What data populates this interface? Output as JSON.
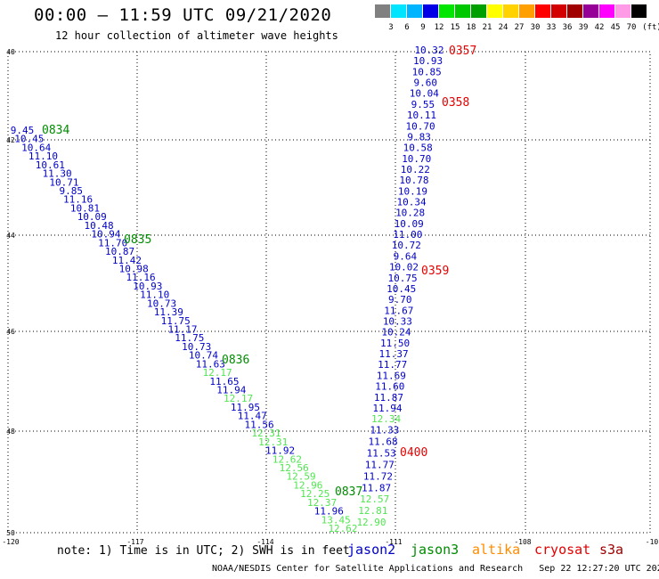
{
  "title": "00:00 — 11:59 UTC 09/21/2020",
  "subtitle": "12 hour collection of altimeter wave heights",
  "legend": {
    "colors": [
      "#808080",
      "#00e5ff",
      "#00b4ff",
      "#0000e6",
      "#00e600",
      "#00c800",
      "#00a000",
      "#ffff00",
      "#ffd200",
      "#ffa000",
      "#ff0000",
      "#d20000",
      "#a00000",
      "#960096",
      "#ff00ff",
      "#ff9be6",
      "#000000"
    ],
    "labels": [
      "3",
      "6",
      "9",
      "12",
      "15",
      "18",
      "21",
      "24",
      "27",
      "30",
      "33",
      "36",
      "39",
      "42",
      "45",
      "70"
    ],
    "unit": "(ft)"
  },
  "axes": {
    "lon_ticks": [
      "-120",
      "-117",
      "-114",
      "-111",
      "-108",
      "-10"
    ],
    "lat_ticks": [
      "40",
      "42",
      "44",
      "46",
      "48",
      "50"
    ]
  },
  "note": "note: 1) Time is in UTC; 2) SWH is in feet",
  "satellites": [
    {
      "name": "jason2",
      "color": "#0000c8"
    },
    {
      "name": "jason3",
      "color": "#008c00"
    },
    {
      "name": "altika",
      "color": "#ff8c00"
    },
    {
      "name": "cryosat",
      "color": "#e60000"
    },
    {
      "name": "s3a",
      "color": "#a00000"
    }
  ],
  "credit": "NOAA/NESDIS Center for Satellite Applications and Research   Sep 22 12:27:20 UTC 2020",
  "track_west": [
    {
      "v": "9.45",
      "c": "#0000c8"
    },
    {
      "v": "10.45",
      "c": "#0000c8"
    },
    {
      "v": "10.64",
      "c": "#0000c8"
    },
    {
      "v": "11.10",
      "c": "#0000c8"
    },
    {
      "v": "10.61",
      "c": "#0000c8"
    },
    {
      "v": "11.30",
      "c": "#0000c8"
    },
    {
      "v": "10.71",
      "c": "#0000c8"
    },
    {
      "v": "9.85",
      "c": "#0000c8"
    },
    {
      "v": "11.16",
      "c": "#0000c8"
    },
    {
      "v": "10.81",
      "c": "#0000c8"
    },
    {
      "v": "10.09",
      "c": "#0000c8"
    },
    {
      "v": "10.48",
      "c": "#0000c8"
    },
    {
      "v": "10.94",
      "c": "#0000c8"
    },
    {
      "v": "11.70",
      "c": "#0000c8"
    },
    {
      "v": "10.87",
      "c": "#0000c8"
    },
    {
      "v": "11.42",
      "c": "#0000c8"
    },
    {
      "v": "10.98",
      "c": "#0000c8"
    },
    {
      "v": "11.16",
      "c": "#0000c8"
    },
    {
      "v": "10.93",
      "c": "#0000c8"
    },
    {
      "v": "11.10",
      "c": "#0000c8"
    },
    {
      "v": "10.73",
      "c": "#0000c8"
    },
    {
      "v": "11.39",
      "c": "#0000c8"
    },
    {
      "v": "11.75",
      "c": "#0000c8"
    },
    {
      "v": "11.17",
      "c": "#0000c8"
    },
    {
      "v": "11.75",
      "c": "#0000c8"
    },
    {
      "v": "10.73",
      "c": "#0000c8"
    },
    {
      "v": "10.74",
      "c": "#0000c8"
    },
    {
      "v": "11.63",
      "c": "#0000c8"
    },
    {
      "v": "12.17",
      "c": "#50e650"
    },
    {
      "v": "11.65",
      "c": "#0000c8"
    },
    {
      "v": "11.94",
      "c": "#0000c8"
    },
    {
      "v": "12.17",
      "c": "#50e650"
    },
    {
      "v": "11.95",
      "c": "#0000c8"
    },
    {
      "v": "11.47",
      "c": "#0000c8"
    },
    {
      "v": "11.56",
      "c": "#0000c8"
    },
    {
      "v": "12.31",
      "c": "#50e650"
    },
    {
      "v": "12.31",
      "c": "#50e650"
    },
    {
      "v": "11.92",
      "c": "#0000c8"
    },
    {
      "v": "12.62",
      "c": "#50e650"
    },
    {
      "v": "12.56",
      "c": "#50e650"
    },
    {
      "v": "12.59",
      "c": "#50e650"
    },
    {
      "v": "12.96",
      "c": "#50e650"
    },
    {
      "v": "12.25",
      "c": "#50e650"
    },
    {
      "v": "12.37",
      "c": "#50e650"
    },
    {
      "v": "11.96",
      "c": "#0000c8"
    },
    {
      "v": "13.45",
      "c": "#50e650"
    },
    {
      "v": "12.62",
      "c": "#50e650"
    }
  ],
  "track_east": [
    {
      "v": "10.32",
      "c": "#0000c8"
    },
    {
      "v": "10.93",
      "c": "#0000c8"
    },
    {
      "v": "10.85",
      "c": "#0000c8"
    },
    {
      "v": "9.60",
      "c": "#0000c8"
    },
    {
      "v": "10.04",
      "c": "#0000c8"
    },
    {
      "v": "9.55",
      "c": "#0000c8"
    },
    {
      "v": "10.11",
      "c": "#0000c8"
    },
    {
      "v": "10.70",
      "c": "#0000c8"
    },
    {
      "v": "9.83",
      "c": "#0000c8"
    },
    {
      "v": "10.58",
      "c": "#0000c8"
    },
    {
      "v": "10.70",
      "c": "#0000c8"
    },
    {
      "v": "10.22",
      "c": "#0000c8"
    },
    {
      "v": "10.78",
      "c": "#0000c8"
    },
    {
      "v": "10.19",
      "c": "#0000c8"
    },
    {
      "v": "10.34",
      "c": "#0000c8"
    },
    {
      "v": "10.28",
      "c": "#0000c8"
    },
    {
      "v": "10.09",
      "c": "#0000c8"
    },
    {
      "v": "11.00",
      "c": "#0000c8"
    },
    {
      "v": "10.72",
      "c": "#0000c8"
    },
    {
      "v": "9.64",
      "c": "#0000c8"
    },
    {
      "v": "10.02",
      "c": "#0000c8"
    },
    {
      "v": "10.75",
      "c": "#0000c8"
    },
    {
      "v": "10.45",
      "c": "#0000c8"
    },
    {
      "v": "9.70",
      "c": "#0000c8"
    },
    {
      "v": "11.67",
      "c": "#0000c8"
    },
    {
      "v": "10.33",
      "c": "#0000c8"
    },
    {
      "v": "10.24",
      "c": "#0000c8"
    },
    {
      "v": "11.50",
      "c": "#0000c8"
    },
    {
      "v": "11.37",
      "c": "#0000c8"
    },
    {
      "v": "11.77",
      "c": "#0000c8"
    },
    {
      "v": "11.69",
      "c": "#0000c8"
    },
    {
      "v": "11.60",
      "c": "#0000c8"
    },
    {
      "v": "11.87",
      "c": "#0000c8"
    },
    {
      "v": "11.94",
      "c": "#0000c8"
    },
    {
      "v": "12.34",
      "c": "#50e650"
    },
    {
      "v": "11.33",
      "c": "#0000c8"
    },
    {
      "v": "11.68",
      "c": "#0000c8"
    },
    {
      "v": "11.53",
      "c": "#0000c8"
    },
    {
      "v": "11.77",
      "c": "#0000c8"
    },
    {
      "v": "11.72",
      "c": "#0000c8"
    },
    {
      "v": "11.87",
      "c": "#0000c8"
    },
    {
      "v": "12.57",
      "c": "#50e650"
    },
    {
      "v": "12.81",
      "c": "#50e650"
    },
    {
      "v": "12.90",
      "c": "#50e650"
    }
  ],
  "time_labels": [
    {
      "t": "0834",
      "c": "#008c00"
    },
    {
      "t": "0835",
      "c": "#008c00"
    },
    {
      "t": "0836",
      "c": "#008c00"
    },
    {
      "t": "0837",
      "c": "#008c00"
    },
    {
      "t": "0357",
      "c": "#e60000"
    },
    {
      "t": "0358",
      "c": "#e60000"
    },
    {
      "t": "0359",
      "c": "#e60000"
    },
    {
      "t": "0400",
      "c": "#e60000"
    }
  ]
}
